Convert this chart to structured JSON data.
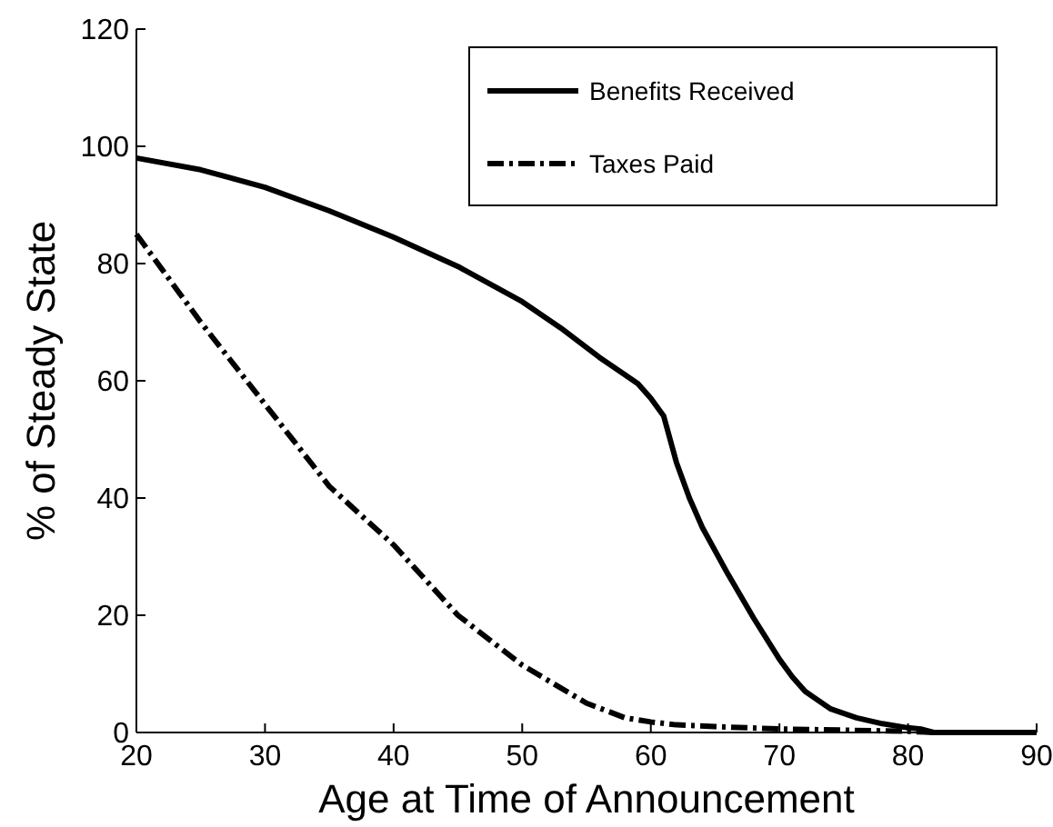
{
  "chart_data": {
    "type": "line",
    "xlabel": "Age at Time of Announcement",
    "ylabel": "% of Steady State",
    "xlim": [
      20,
      90
    ],
    "ylim": [
      0,
      120
    ],
    "xticks": [
      20,
      30,
      40,
      50,
      60,
      70,
      80,
      90
    ],
    "yticks": [
      0,
      20,
      40,
      60,
      80,
      100,
      120
    ],
    "grid": false,
    "legend": "top right",
    "marker": "none",
    "series": [
      {
        "name": "Benefits Received",
        "color": "#000000",
        "line_style": "solid",
        "x": [
          20,
          25,
          30,
          35,
          40,
          45,
          50,
          53,
          56,
          58,
          59,
          60,
          61,
          62,
          63,
          64,
          66,
          68,
          70,
          71,
          72,
          74,
          76,
          78,
          80,
          81,
          82,
          90
        ],
        "values": [
          98,
          96,
          93,
          89,
          84.5,
          79.5,
          73.5,
          69,
          64,
          61,
          59.5,
          57,
          54,
          46,
          40,
          35,
          27,
          19.5,
          12.5,
          9.5,
          7,
          4,
          2.5,
          1.5,
          0.8,
          0.6,
          0,
          0
        ]
      },
      {
        "name": "Taxes Paid",
        "color": "#000000",
        "line_style": "dashdot",
        "x": [
          20,
          22,
          25,
          30,
          35,
          40,
          45,
          50,
          55,
          58,
          60,
          62,
          65,
          70,
          75,
          80,
          82,
          90
        ],
        "values": [
          85,
          79,
          70,
          56,
          42,
          32,
          20,
          11.5,
          5,
          2.5,
          1.8,
          1.3,
          1,
          0.6,
          0.4,
          0.2,
          0,
          0
        ]
      }
    ]
  }
}
